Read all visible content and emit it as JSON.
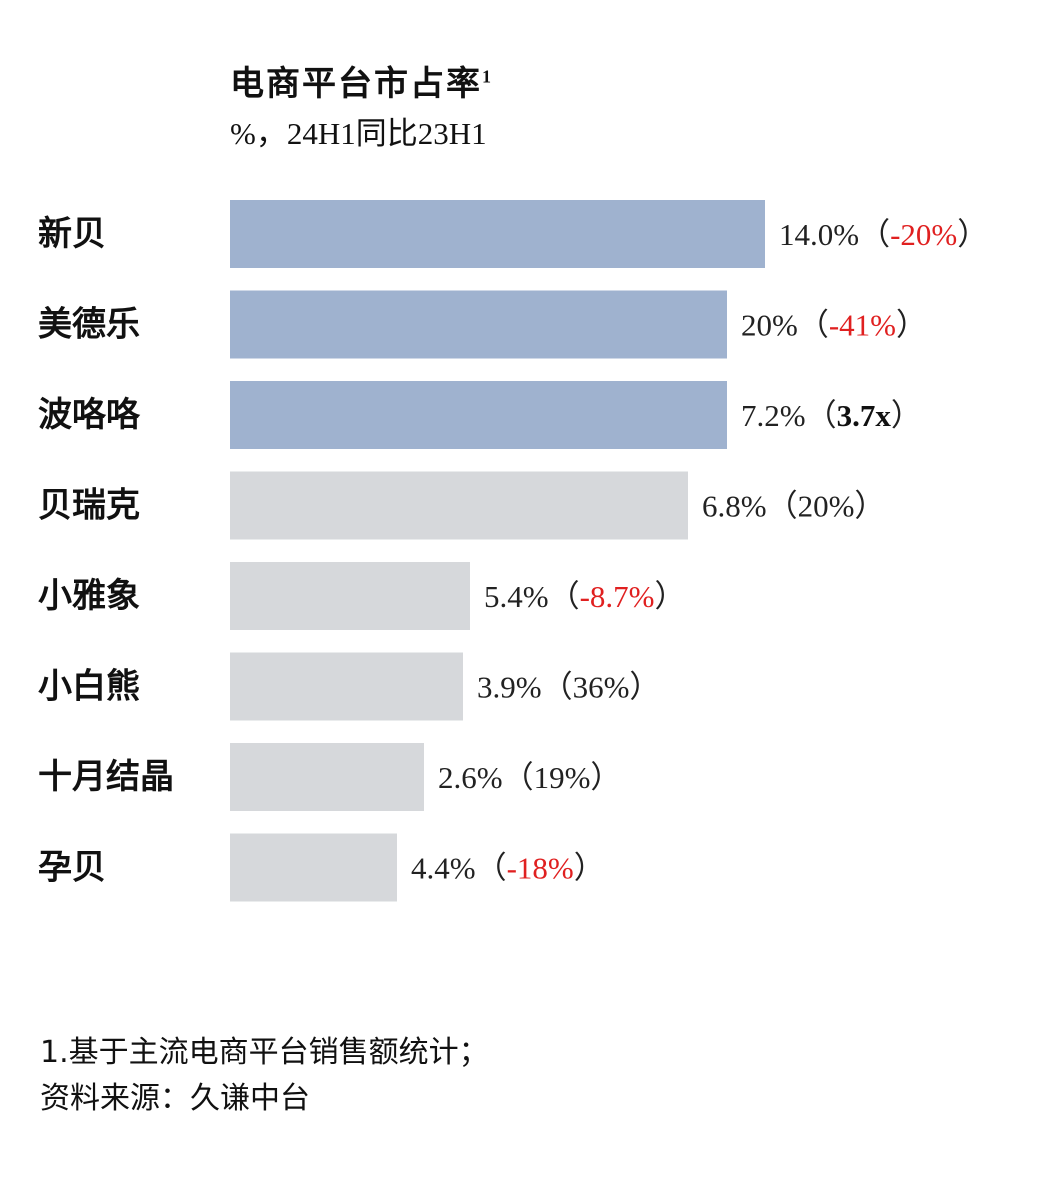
{
  "chart_data": {
    "type": "bar",
    "orientation": "horizontal",
    "title": "电商平台市占率",
    "title_superscript": "1",
    "subtitle": "%，24H1同比23H1",
    "categories": [
      "新贝",
      "美德乐",
      "波咯咯",
      "贝瑞克",
      "小雅象",
      "小白熊",
      "十月结晶",
      "孕贝"
    ],
    "values": [
      14.0,
      20,
      7.2,
      6.8,
      5.4,
      3.9,
      2.6,
      4.4
    ],
    "value_labels": [
      "14.0%",
      "20%",
      "7.2%",
      "6.8%",
      "5.4%",
      "3.9%",
      "2.6%",
      "4.4%"
    ],
    "yoy_labels": [
      "-20%",
      "-41%",
      "3.7x",
      "20%",
      "-8.7%",
      "36%",
      "19%",
      "-18%"
    ],
    "highlighted": [
      true,
      true,
      true,
      false,
      false,
      false,
      false,
      false
    ],
    "colors": {
      "highlight": "#9fb2cf",
      "default": "#d6d8db",
      "negative": "#e02020"
    }
  },
  "footnote": {
    "line1": "1.基于主流电商平台销售额统计；",
    "line2": "资料来源：久谦中台"
  }
}
